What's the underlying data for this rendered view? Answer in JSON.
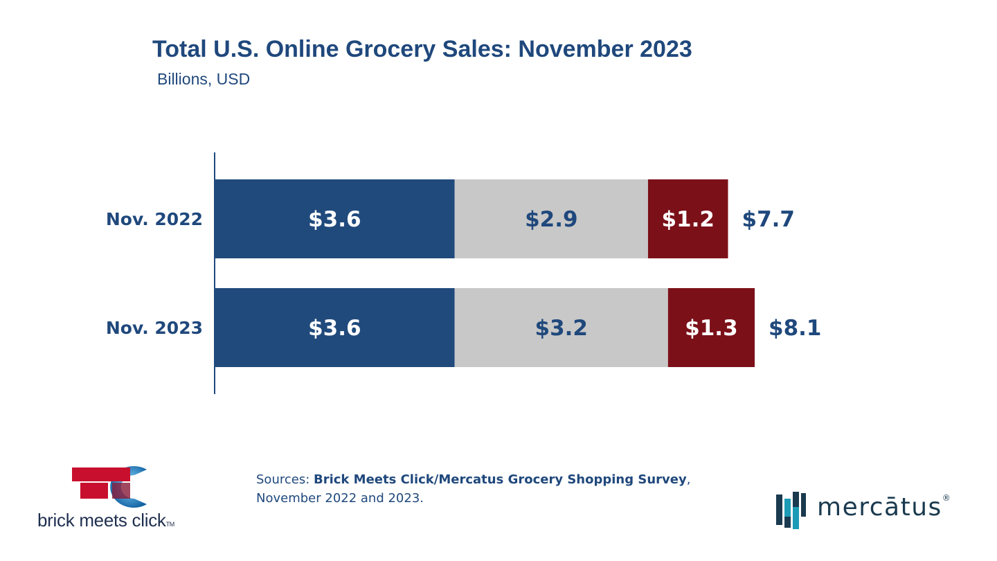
{
  "header": {
    "title": "Total U.S. Online Grocery Sales: November 2023",
    "subtitle": "Billions, USD"
  },
  "chart_data": {
    "type": "bar",
    "orientation": "horizontal",
    "stacked": true,
    "title": "Total U.S. Online Grocery Sales: November 2023",
    "subtitle": "Billions, USD",
    "categories": [
      "Nov. 2022",
      "Nov. 2023"
    ],
    "series": [
      {
        "values": [
          3.6,
          3.6
        ],
        "labels": [
          "$3.6",
          "$3.6"
        ],
        "color": "#214a7c",
        "label_color": "#ffffff"
      },
      {
        "values": [
          2.9,
          3.2
        ],
        "labels": [
          "$2.9",
          "$3.2"
        ],
        "color": "#c8c8c8",
        "label_color": "#1f487c"
      },
      {
        "values": [
          1.2,
          1.3
        ],
        "labels": [
          "$1.2",
          "$1.3"
        ],
        "color": "#7b1019",
        "label_color": "#ffffff"
      }
    ],
    "totals": [
      7.7,
      8.1
    ],
    "total_labels": [
      "$7.7",
      "$8.1"
    ],
    "xlim": [
      0,
      8.1
    ],
    "grid": false,
    "legend": "none"
  },
  "footer": {
    "sources_prefix": "Sources: ",
    "sources_bold": "Brick Meets Click/Mercatus Grocery Shopping Survey",
    "sources_suffix": ",",
    "sources_line2": "November 2022 and 2023."
  },
  "logos": {
    "brick_meets_click": {
      "text": "brick meets click",
      "tm": "TM",
      "colors": {
        "red": "#c8102e",
        "blue": "#1d7fc4"
      }
    },
    "mercatus": {
      "text": "mercātus",
      "reg": "®",
      "colors": {
        "teal": "#1c9bb6",
        "dark": "#1a3a4f"
      }
    }
  },
  "colors": {
    "title": "#1f487c",
    "axis": "#1f487c"
  }
}
